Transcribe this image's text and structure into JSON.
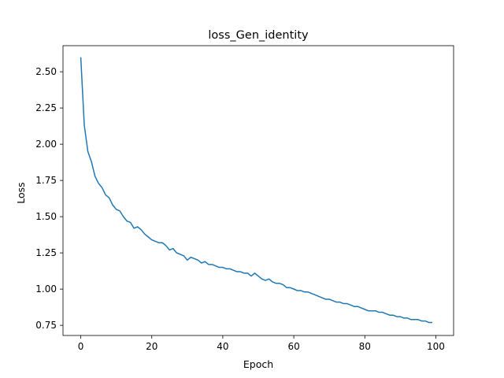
{
  "chart_data": {
    "type": "line",
    "title": "loss_Gen_identity",
    "xlabel": "Epoch",
    "ylabel": "Loss",
    "xlim": [
      -5,
      105
    ],
    "ylim": [
      0.68,
      2.68
    ],
    "xticks": [
      0,
      20,
      40,
      60,
      80,
      100
    ],
    "xtick_labels": [
      "0",
      "20",
      "40",
      "60",
      "80",
      "100"
    ],
    "yticks": [
      0.75,
      1.0,
      1.25,
      1.5,
      1.75,
      2.0,
      2.25,
      2.5
    ],
    "ytick_labels": [
      "0.75",
      "1.00",
      "1.25",
      "1.50",
      "1.75",
      "2.00",
      "2.25",
      "2.50"
    ],
    "grid": false,
    "legend": "none",
    "series": [
      {
        "color": "#1f77b4",
        "x": [
          0,
          1,
          2,
          3,
          4,
          5,
          6,
          7,
          8,
          9,
          10,
          11,
          12,
          13,
          14,
          15,
          16,
          17,
          18,
          19,
          20,
          21,
          22,
          23,
          24,
          25,
          26,
          27,
          28,
          29,
          30,
          31,
          32,
          33,
          34,
          35,
          36,
          37,
          38,
          39,
          40,
          41,
          42,
          43,
          44,
          45,
          46,
          47,
          48,
          49,
          50,
          51,
          52,
          53,
          54,
          55,
          56,
          57,
          58,
          59,
          60,
          61,
          62,
          63,
          64,
          65,
          66,
          67,
          68,
          69,
          70,
          71,
          72,
          73,
          74,
          75,
          76,
          77,
          78,
          79,
          80,
          81,
          82,
          83,
          84,
          85,
          86,
          87,
          88,
          89,
          90,
          91,
          92,
          93,
          94,
          95,
          96,
          97,
          98,
          99
        ],
        "values": [
          2.6,
          2.13,
          1.95,
          1.88,
          1.78,
          1.73,
          1.7,
          1.65,
          1.63,
          1.58,
          1.55,
          1.54,
          1.5,
          1.47,
          1.46,
          1.42,
          1.43,
          1.41,
          1.38,
          1.36,
          1.34,
          1.33,
          1.32,
          1.32,
          1.3,
          1.27,
          1.28,
          1.25,
          1.24,
          1.23,
          1.2,
          1.22,
          1.21,
          1.2,
          1.18,
          1.19,
          1.17,
          1.17,
          1.16,
          1.15,
          1.15,
          1.14,
          1.14,
          1.13,
          1.12,
          1.12,
          1.11,
          1.11,
          1.09,
          1.11,
          1.09,
          1.07,
          1.06,
          1.07,
          1.05,
          1.04,
          1.04,
          1.03,
          1.01,
          1.01,
          1.0,
          0.99,
          0.99,
          0.98,
          0.98,
          0.97,
          0.96,
          0.95,
          0.94,
          0.93,
          0.93,
          0.92,
          0.91,
          0.91,
          0.9,
          0.9,
          0.89,
          0.88,
          0.88,
          0.87,
          0.86,
          0.85,
          0.85,
          0.85,
          0.84,
          0.84,
          0.83,
          0.82,
          0.82,
          0.81,
          0.81,
          0.8,
          0.8,
          0.79,
          0.79,
          0.79,
          0.78,
          0.78,
          0.77,
          0.77
        ]
      }
    ]
  }
}
